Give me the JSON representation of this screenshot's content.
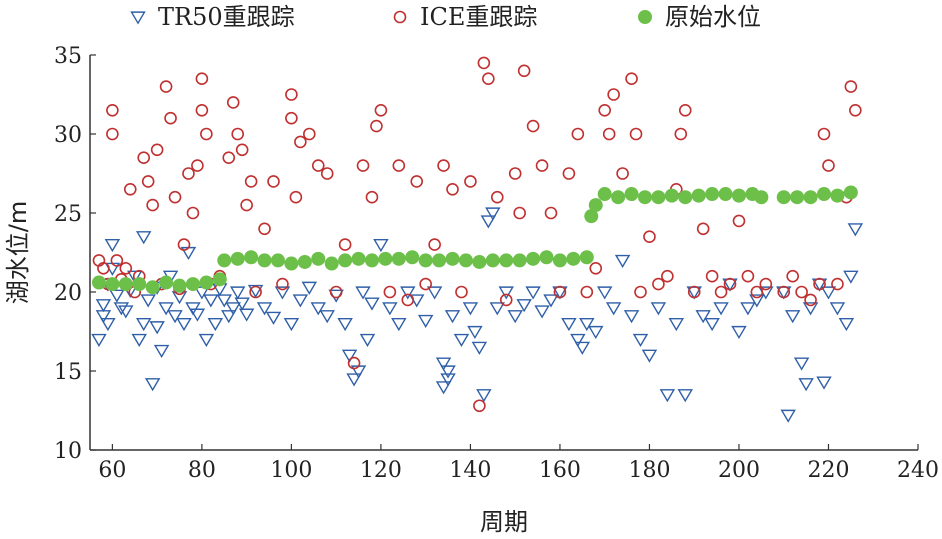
{
  "chart_data": {
    "type": "scatter",
    "title": "",
    "xlabel": "周期",
    "ylabel": "湖水位/m",
    "xlim": [
      55,
      240
    ],
    "ylim": [
      10,
      35
    ],
    "xticks": [
      60,
      80,
      100,
      120,
      140,
      160,
      180,
      200,
      220,
      240
    ],
    "yticks": [
      10,
      15,
      20,
      25,
      30,
      35
    ],
    "legend_position": "top",
    "grid": false,
    "series": [
      {
        "name": "TR50重跟踪",
        "marker": "triangle-down",
        "color": "#2f5fa8",
        "x": [
          57,
          58,
          58,
          59,
          59,
          60,
          60,
          61,
          62,
          63,
          64,
          65,
          66,
          67,
          67,
          68,
          69,
          70,
          70,
          71,
          72,
          73,
          74,
          75,
          76,
          77,
          78,
          79,
          80,
          81,
          82,
          83,
          84,
          85,
          86,
          87,
          88,
          89,
          90,
          92,
          94,
          96,
          98,
          100,
          102,
          104,
          106,
          108,
          110,
          112,
          113,
          114,
          115,
          116,
          117,
          118,
          120,
          122,
          124,
          126,
          128,
          130,
          132,
          134,
          134,
          135,
          135,
          136,
          138,
          140,
          141,
          142,
          143,
          144,
          145,
          146,
          148,
          150,
          152,
          154,
          156,
          158,
          160,
          162,
          164,
          165,
          166,
          168,
          170,
          172,
          174,
          176,
          178,
          180,
          182,
          184,
          186,
          188,
          190,
          192,
          194,
          196,
          198,
          200,
          202,
          204,
          206,
          210,
          211,
          212,
          214,
          215,
          216,
          218,
          219,
          220,
          222,
          224,
          225,
          226
        ],
        "y": [
          17.0,
          18.5,
          19.2,
          18.0,
          20.5,
          23.0,
          21.5,
          19.8,
          19.0,
          18.8,
          20.1,
          21.0,
          17.0,
          18.0,
          23.5,
          19.5,
          14.2,
          17.8,
          20.3,
          16.3,
          19.0,
          21.0,
          18.5,
          19.7,
          18.0,
          22.5,
          19.0,
          18.6,
          20.0,
          17.0,
          19.5,
          18.0,
          20.2,
          19.5,
          18.5,
          19.0,
          20.0,
          19.3,
          18.6,
          20.1,
          19.0,
          18.4,
          20.0,
          18.0,
          19.5,
          20.3,
          19.0,
          18.5,
          19.8,
          18.0,
          16.0,
          14.5,
          15.0,
          20.0,
          17.0,
          19.3,
          23.0,
          19.0,
          18.0,
          20.0,
          19.5,
          18.2,
          20.0,
          15.5,
          14.0,
          15.0,
          14.5,
          18.5,
          17.0,
          19.0,
          17.5,
          16.5,
          13.5,
          24.5,
          25.0,
          19.0,
          20.0,
          18.5,
          19.2,
          20.0,
          18.8,
          19.5,
          20.0,
          18.0,
          17.0,
          16.5,
          18.0,
          17.5,
          20.0,
          19.0,
          22.0,
          18.5,
          17.0,
          16.0,
          19.0,
          13.5,
          18.0,
          13.5,
          20.0,
          18.5,
          18.0,
          19.0,
          20.5,
          17.5,
          19.0,
          19.5,
          20.0,
          20.0,
          12.2,
          18.5,
          15.5,
          14.2,
          19.0,
          20.5,
          14.3,
          20.0,
          19.0,
          18.0,
          21.0,
          24.0
        ]
      },
      {
        "name": "ICE重跟踪",
        "marker": "circle-open",
        "color": "#c03030",
        "x": [
          57,
          58,
          59,
          60,
          60,
          61,
          62,
          63,
          64,
          65,
          66,
          67,
          68,
          69,
          70,
          71,
          72,
          73,
          74,
          75,
          76,
          77,
          78,
          79,
          80,
          80,
          81,
          82,
          84,
          86,
          87,
          88,
          89,
          90,
          91,
          92,
          94,
          96,
          98,
          100,
          100,
          101,
          102,
          104,
          106,
          108,
          110,
          112,
          114,
          116,
          118,
          119,
          120,
          122,
          124,
          126,
          128,
          130,
          132,
          134,
          136,
          138,
          140,
          142,
          143,
          144,
          146,
          148,
          150,
          151,
          152,
          154,
          156,
          158,
          160,
          162,
          164,
          166,
          168,
          170,
          171,
          172,
          174,
          176,
          177,
          178,
          180,
          182,
          184,
          186,
          187,
          188,
          190,
          192,
          194,
          196,
          198,
          200,
          202,
          204,
          206,
          210,
          212,
          214,
          216,
          218,
          219,
          220,
          222,
          224,
          225,
          226
        ],
        "y": [
          22.0,
          21.5,
          20.5,
          31.5,
          30.0,
          22.0,
          20.8,
          21.5,
          26.5,
          20.0,
          21.0,
          28.5,
          27.0,
          25.5,
          29.0,
          20.5,
          33.0,
          31.0,
          26.0,
          20.2,
          23.0,
          27.5,
          25.0,
          28.0,
          33.5,
          31.5,
          30.0,
          20.5,
          21.0,
          28.5,
          32.0,
          30.0,
          29.0,
          25.5,
          27.0,
          20.0,
          24.0,
          27.0,
          20.5,
          32.5,
          31.0,
          26.0,
          29.5,
          30.0,
          28.0,
          27.5,
          20.0,
          23.0,
          15.5,
          28.0,
          26.0,
          30.5,
          31.5,
          20.0,
          28.0,
          19.5,
          27.0,
          20.5,
          23.0,
          28.0,
          26.5,
          20.0,
          27.0,
          12.8,
          34.5,
          33.5,
          26.0,
          19.5,
          27.5,
          25.0,
          34.0,
          30.5,
          28.0,
          25.0,
          20.0,
          27.5,
          30.0,
          20.0,
          21.5,
          31.5,
          30.0,
          32.5,
          27.5,
          33.5,
          30.0,
          20.0,
          23.5,
          20.5,
          21.0,
          26.5,
          30.0,
          31.5,
          20.0,
          24.0,
          21.0,
          20.0,
          20.5,
          24.5,
          21.0,
          20.0,
          20.5,
          20.0,
          21.0,
          20.0,
          19.5,
          20.5,
          30.0,
          28.0,
          20.5,
          26.0,
          33.0,
          31.5
        ]
      },
      {
        "name": "原始水位",
        "marker": "circle-filled",
        "color": "#6cc04a",
        "x": [
          57,
          60,
          63,
          66,
          69,
          72,
          75,
          78,
          81,
          84,
          85,
          88,
          91,
          94,
          97,
          100,
          103,
          106,
          109,
          112,
          115,
          118,
          121,
          124,
          127,
          130,
          133,
          136,
          139,
          142,
          145,
          148,
          151,
          154,
          157,
          160,
          163,
          166,
          167,
          168,
          170,
          173,
          176,
          179,
          182,
          185,
          188,
          191,
          194,
          197,
          200,
          203,
          205,
          210,
          213,
          216,
          219,
          222,
          225
        ],
        "y": [
          20.6,
          20.5,
          20.5,
          20.5,
          20.3,
          20.6,
          20.4,
          20.5,
          20.6,
          20.8,
          22.0,
          22.1,
          22.2,
          22.0,
          22.0,
          21.8,
          21.9,
          22.1,
          21.8,
          22.0,
          22.1,
          22.0,
          22.1,
          22.1,
          22.2,
          22.0,
          22.0,
          22.1,
          22.0,
          21.9,
          22.0,
          22.0,
          22.0,
          22.1,
          22.2,
          22.0,
          22.1,
          22.2,
          24.8,
          25.5,
          26.2,
          26.0,
          26.2,
          26.0,
          26.0,
          26.1,
          26.0,
          26.1,
          26.2,
          26.2,
          26.1,
          26.2,
          26.0,
          26.0,
          26.0,
          26.0,
          26.2,
          26.1,
          26.3
        ]
      }
    ]
  }
}
